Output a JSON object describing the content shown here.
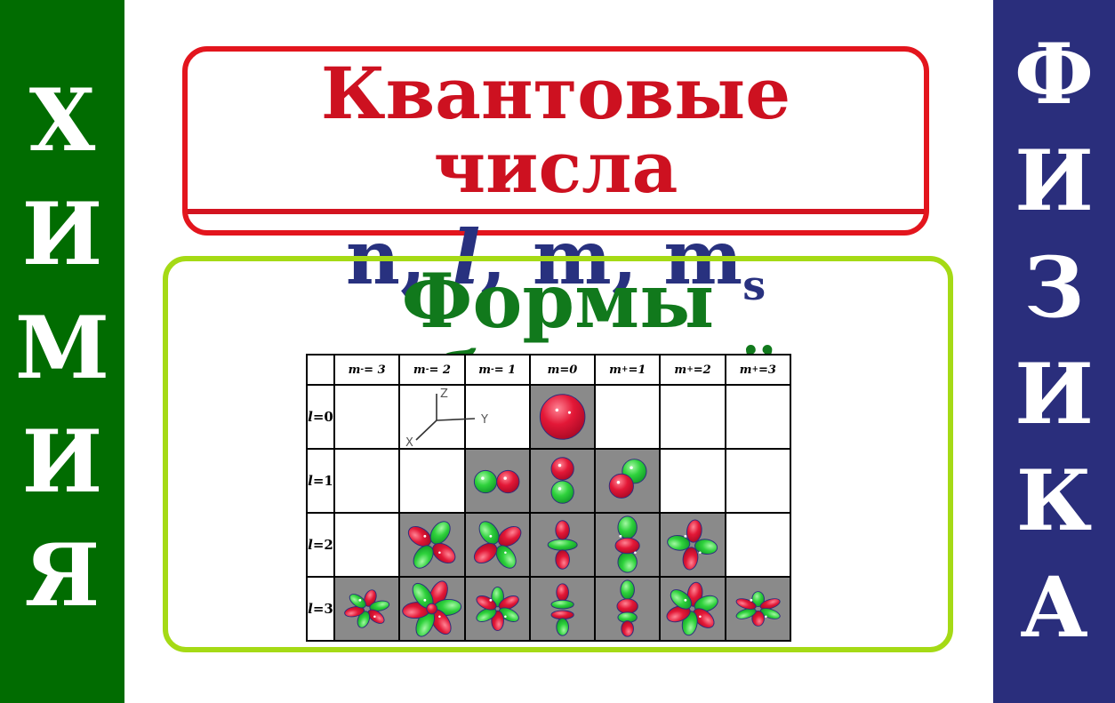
{
  "colors": {
    "left_banner_bg": "#016c01",
    "right_banner_bg": "#2a2e7c",
    "red_border": "#e3151d",
    "red_title": "#cd1120",
    "navy_text": "#28317f",
    "green_border": "#a5da15",
    "green_title": "#11791c",
    "cell_gray": "#8a8a8a",
    "orbital_red": "#e31837",
    "orbital_green": "#2fd23c"
  },
  "left_banner": {
    "word": "ХИМИЯ",
    "letters": [
      "Х",
      "И",
      "М",
      "И",
      "Я"
    ]
  },
  "right_banner": {
    "word": "ФИЗИКА",
    "letters": [
      "Ф",
      "И",
      "З",
      "И",
      "К",
      "А"
    ]
  },
  "quantum_box": {
    "title": "Квантовые числа",
    "separator": ", ",
    "symbols": [
      {
        "text": "n",
        "italic": false,
        "sub": ""
      },
      {
        "text": "l",
        "italic": true,
        "sub": ""
      },
      {
        "text": "m",
        "italic": false,
        "sub": ""
      },
      {
        "text": "m",
        "italic": false,
        "sub": "s"
      }
    ]
  },
  "orbitals_box": {
    "title": "Формы орбиталей",
    "axes": {
      "x": "X",
      "y": "Y",
      "z": "Z"
    },
    "table": {
      "corner": "",
      "column_headers": [
        {
          "pre": "m",
          "sub": "-",
          "post": "= 3"
        },
        {
          "pre": "m",
          "sub": "-",
          "post": "= 2"
        },
        {
          "pre": "m",
          "sub": "-",
          "post": "= 1"
        },
        {
          "pre": "m",
          "sub": "",
          "post": "=0"
        },
        {
          "pre": "m",
          "sub": "+",
          "post": "=1"
        },
        {
          "pre": "m",
          "sub": "+",
          "post": "=2"
        },
        {
          "pre": "m",
          "sub": "+",
          "post": "=3"
        }
      ],
      "rows": [
        {
          "label_pre": "l",
          "label_post": "=0",
          "cells": [
            null,
            null,
            null,
            "s-sphere",
            null,
            null,
            null
          ]
        },
        {
          "label_pre": "l",
          "label_post": "=1",
          "cells": [
            null,
            null,
            "p-horizontal",
            "p-vertical",
            "p-diagonal",
            null,
            null
          ]
        },
        {
          "label_pre": "l",
          "label_post": "=2",
          "cells": [
            null,
            "d-clover-tilted",
            "d-clover",
            "d-z2",
            "d-stack",
            "d-clover-axial",
            null
          ]
        },
        {
          "label_pre": "l",
          "label_post": "=3",
          "cells": [
            "f-star-small",
            "f-star-large",
            "f-star",
            "f-z3",
            "f-stack",
            "f-star-big",
            "f-star-flat"
          ]
        }
      ]
    }
  }
}
